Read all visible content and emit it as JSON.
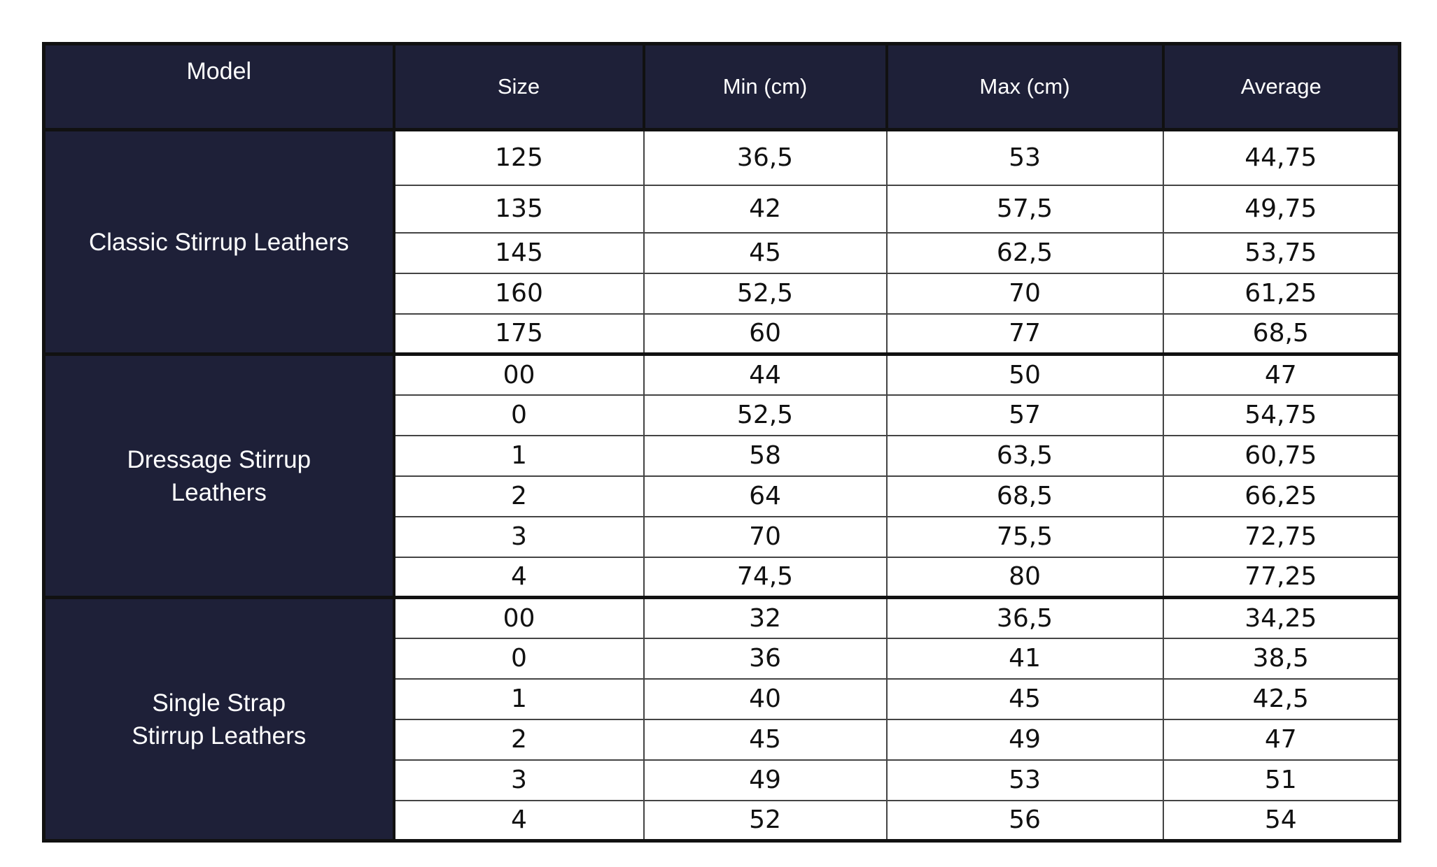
{
  "header": [
    "Model",
    "Size",
    "Min (cm)",
    "Max (cm)",
    "Average"
  ],
  "groups": [
    {
      "model": [
        "Classic Stirrup Leathers"
      ],
      "rows": [
        [
          "125",
          "36,5",
          "53",
          "44,75"
        ],
        [
          "135",
          "42",
          "57,5",
          "49,75"
        ],
        [
          "145",
          "45",
          "62,5",
          "53,75"
        ],
        [
          "160",
          "52,5",
          "70",
          "61,25"
        ],
        [
          "175",
          "60",
          "77",
          "68,5"
        ]
      ]
    },
    {
      "model": [
        "Dressage Stirrup",
        "Leathers"
      ],
      "rows": [
        [
          "00",
          "44",
          "50",
          "47"
        ],
        [
          "0",
          "52,5",
          "57",
          "54,75"
        ],
        [
          "1",
          "58",
          "63,5",
          "60,75"
        ],
        [
          "2",
          "64",
          "68,5",
          "66,25"
        ],
        [
          "3",
          "70",
          "75,5",
          "72,75"
        ],
        [
          "4",
          "74,5",
          "80",
          "77,25"
        ]
      ]
    },
    {
      "model": [
        "Single Strap",
        "Stirrup Leathers"
      ],
      "rows": [
        [
          "00",
          "32",
          "36,5",
          "34,25"
        ],
        [
          "0",
          "36",
          "41",
          "38,5"
        ],
        [
          "1",
          "40",
          "45",
          "42,5"
        ],
        [
          "2",
          "45",
          "49",
          "47"
        ],
        [
          "3",
          "49",
          "53",
          "51"
        ],
        [
          "4",
          "52",
          "56",
          "54"
        ]
      ]
    }
  ]
}
